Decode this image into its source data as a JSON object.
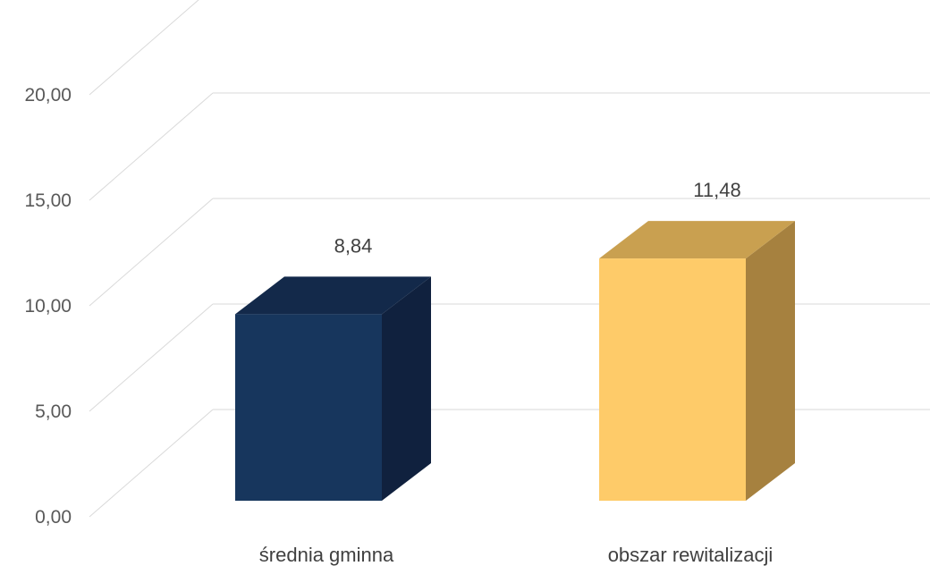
{
  "chart_data": {
    "type": "bar",
    "three_d": true,
    "categories": [
      "średnia gminna",
      "obszar rewitalizacji"
    ],
    "values": [
      8.84,
      11.48
    ],
    "value_labels": [
      "8,84",
      "11,48"
    ],
    "y_ticks": [
      "0,00",
      "5,00",
      "10,00",
      "15,00",
      "20,00"
    ],
    "y_tick_values": [
      0,
      5,
      10,
      15,
      20
    ],
    "ylim": [
      0,
      20
    ],
    "grid": true,
    "legend": "none",
    "colors": {
      "series": [
        {
          "front": "#17365d",
          "side": "#10213e",
          "top": "#13294a"
        },
        {
          "front": "#fecb69",
          "side": "#a6813f",
          "top": "#c9a050"
        }
      ],
      "grid": "#d9d9d9",
      "tick_text": "#595959",
      "label_text": "#404040"
    }
  }
}
